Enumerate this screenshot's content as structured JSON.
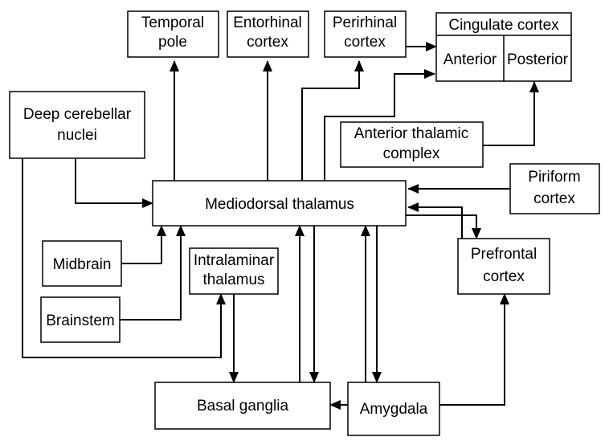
{
  "nodes": {
    "temporal_pole": [
      "Temporal",
      "pole"
    ],
    "entorhinal_cortex": [
      "Entorhinal",
      "cortex"
    ],
    "perirhinal_cortex": [
      "Perirhinal",
      "cortex"
    ],
    "cingulate_cortex": "Cingulate cortex",
    "cingulate_anterior": "Anterior",
    "cingulate_posterior": "Posterior",
    "deep_cerebellar_nuclei": [
      "Deep cerebellar",
      "nuclei"
    ],
    "anterior_thalamic_complex": [
      "Anterior thalamic",
      "complex"
    ],
    "piriform_cortex": [
      "Piriform",
      "cortex"
    ],
    "mediodorsal_thalamus": "Mediodorsal thalamus",
    "midbrain": "Midbrain",
    "intralaminar_thalamus": [
      "Intralaminar",
      "thalamus"
    ],
    "prefrontal_cortex": [
      "Prefrontal",
      "cortex"
    ],
    "brainstem": "Brainstem",
    "basal_ganglia": "Basal ganglia",
    "amygdala": "Amygdala"
  }
}
